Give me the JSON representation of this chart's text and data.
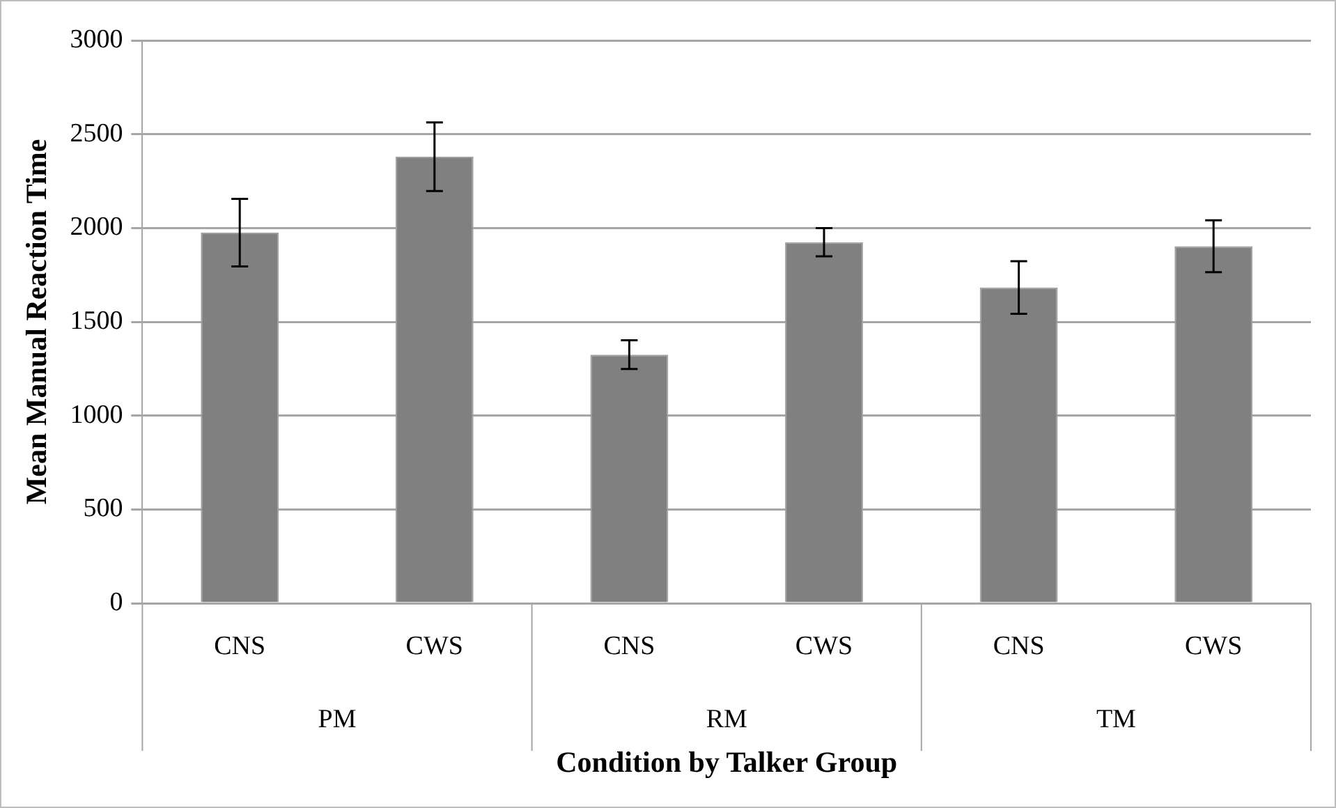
{
  "chart_data": {
    "type": "bar",
    "xlabel": "Condition by Talker Group",
    "ylabel": "Mean Manual Reaction Time",
    "categories": [
      "CNS",
      "CWS",
      "CNS",
      "CWS",
      "CNS",
      "CWS"
    ],
    "values": [
      1975,
      2380,
      1325,
      1924,
      1683,
      1903
    ],
    "errors": [
      180,
      183,
      77,
      75,
      140,
      138
    ],
    "color": "#808080",
    "annotations": [
      "PM",
      "RM",
      "TM"
    ],
    "ylim": [
      0,
      3000
    ],
    "yticks": [
      0,
      500,
      1000,
      1500,
      2000,
      2500,
      3000
    ],
    "grid": "y"
  }
}
